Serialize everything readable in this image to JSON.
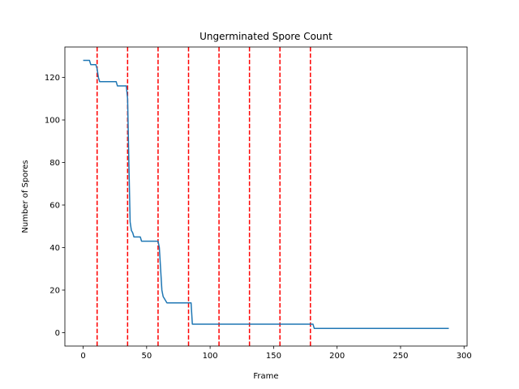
{
  "chart_data": {
    "type": "line",
    "title": "Ungerminated Spore Count",
    "xlabel": "Frame",
    "ylabel": "Number of Spores",
    "xlim": [
      -14.4,
      302.4
    ],
    "ylim": [
      -6.3,
      134.3
    ],
    "xticks": [
      0,
      50,
      100,
      150,
      200,
      250,
      300
    ],
    "yticks": [
      0,
      20,
      40,
      60,
      80,
      100,
      120
    ],
    "grid": false,
    "series": [
      {
        "color": "#1f77b4",
        "points": [
          [
            0,
            128
          ],
          [
            5,
            128
          ],
          [
            6,
            126
          ],
          [
            10,
            126
          ],
          [
            11,
            124
          ],
          [
            12,
            120
          ],
          [
            13,
            118
          ],
          [
            26,
            118
          ],
          [
            27,
            116
          ],
          [
            34,
            116
          ],
          [
            35,
            110
          ],
          [
            36,
            80
          ],
          [
            37,
            52
          ],
          [
            38,
            48
          ],
          [
            39,
            47
          ],
          [
            40,
            45
          ],
          [
            45,
            45
          ],
          [
            46,
            43
          ],
          [
            59,
            43
          ],
          [
            60,
            40
          ],
          [
            61,
            30
          ],
          [
            62,
            20
          ],
          [
            63,
            17
          ],
          [
            65,
            15
          ],
          [
            66,
            14
          ],
          [
            85,
            14
          ],
          [
            86,
            4
          ],
          [
            181,
            4
          ],
          [
            182,
            2
          ],
          [
            288,
            2
          ]
        ]
      }
    ],
    "vlines": {
      "color": "#ff0000",
      "style": "dashed",
      "x": [
        11,
        35,
        59,
        83,
        107,
        131,
        155,
        179
      ]
    }
  }
}
